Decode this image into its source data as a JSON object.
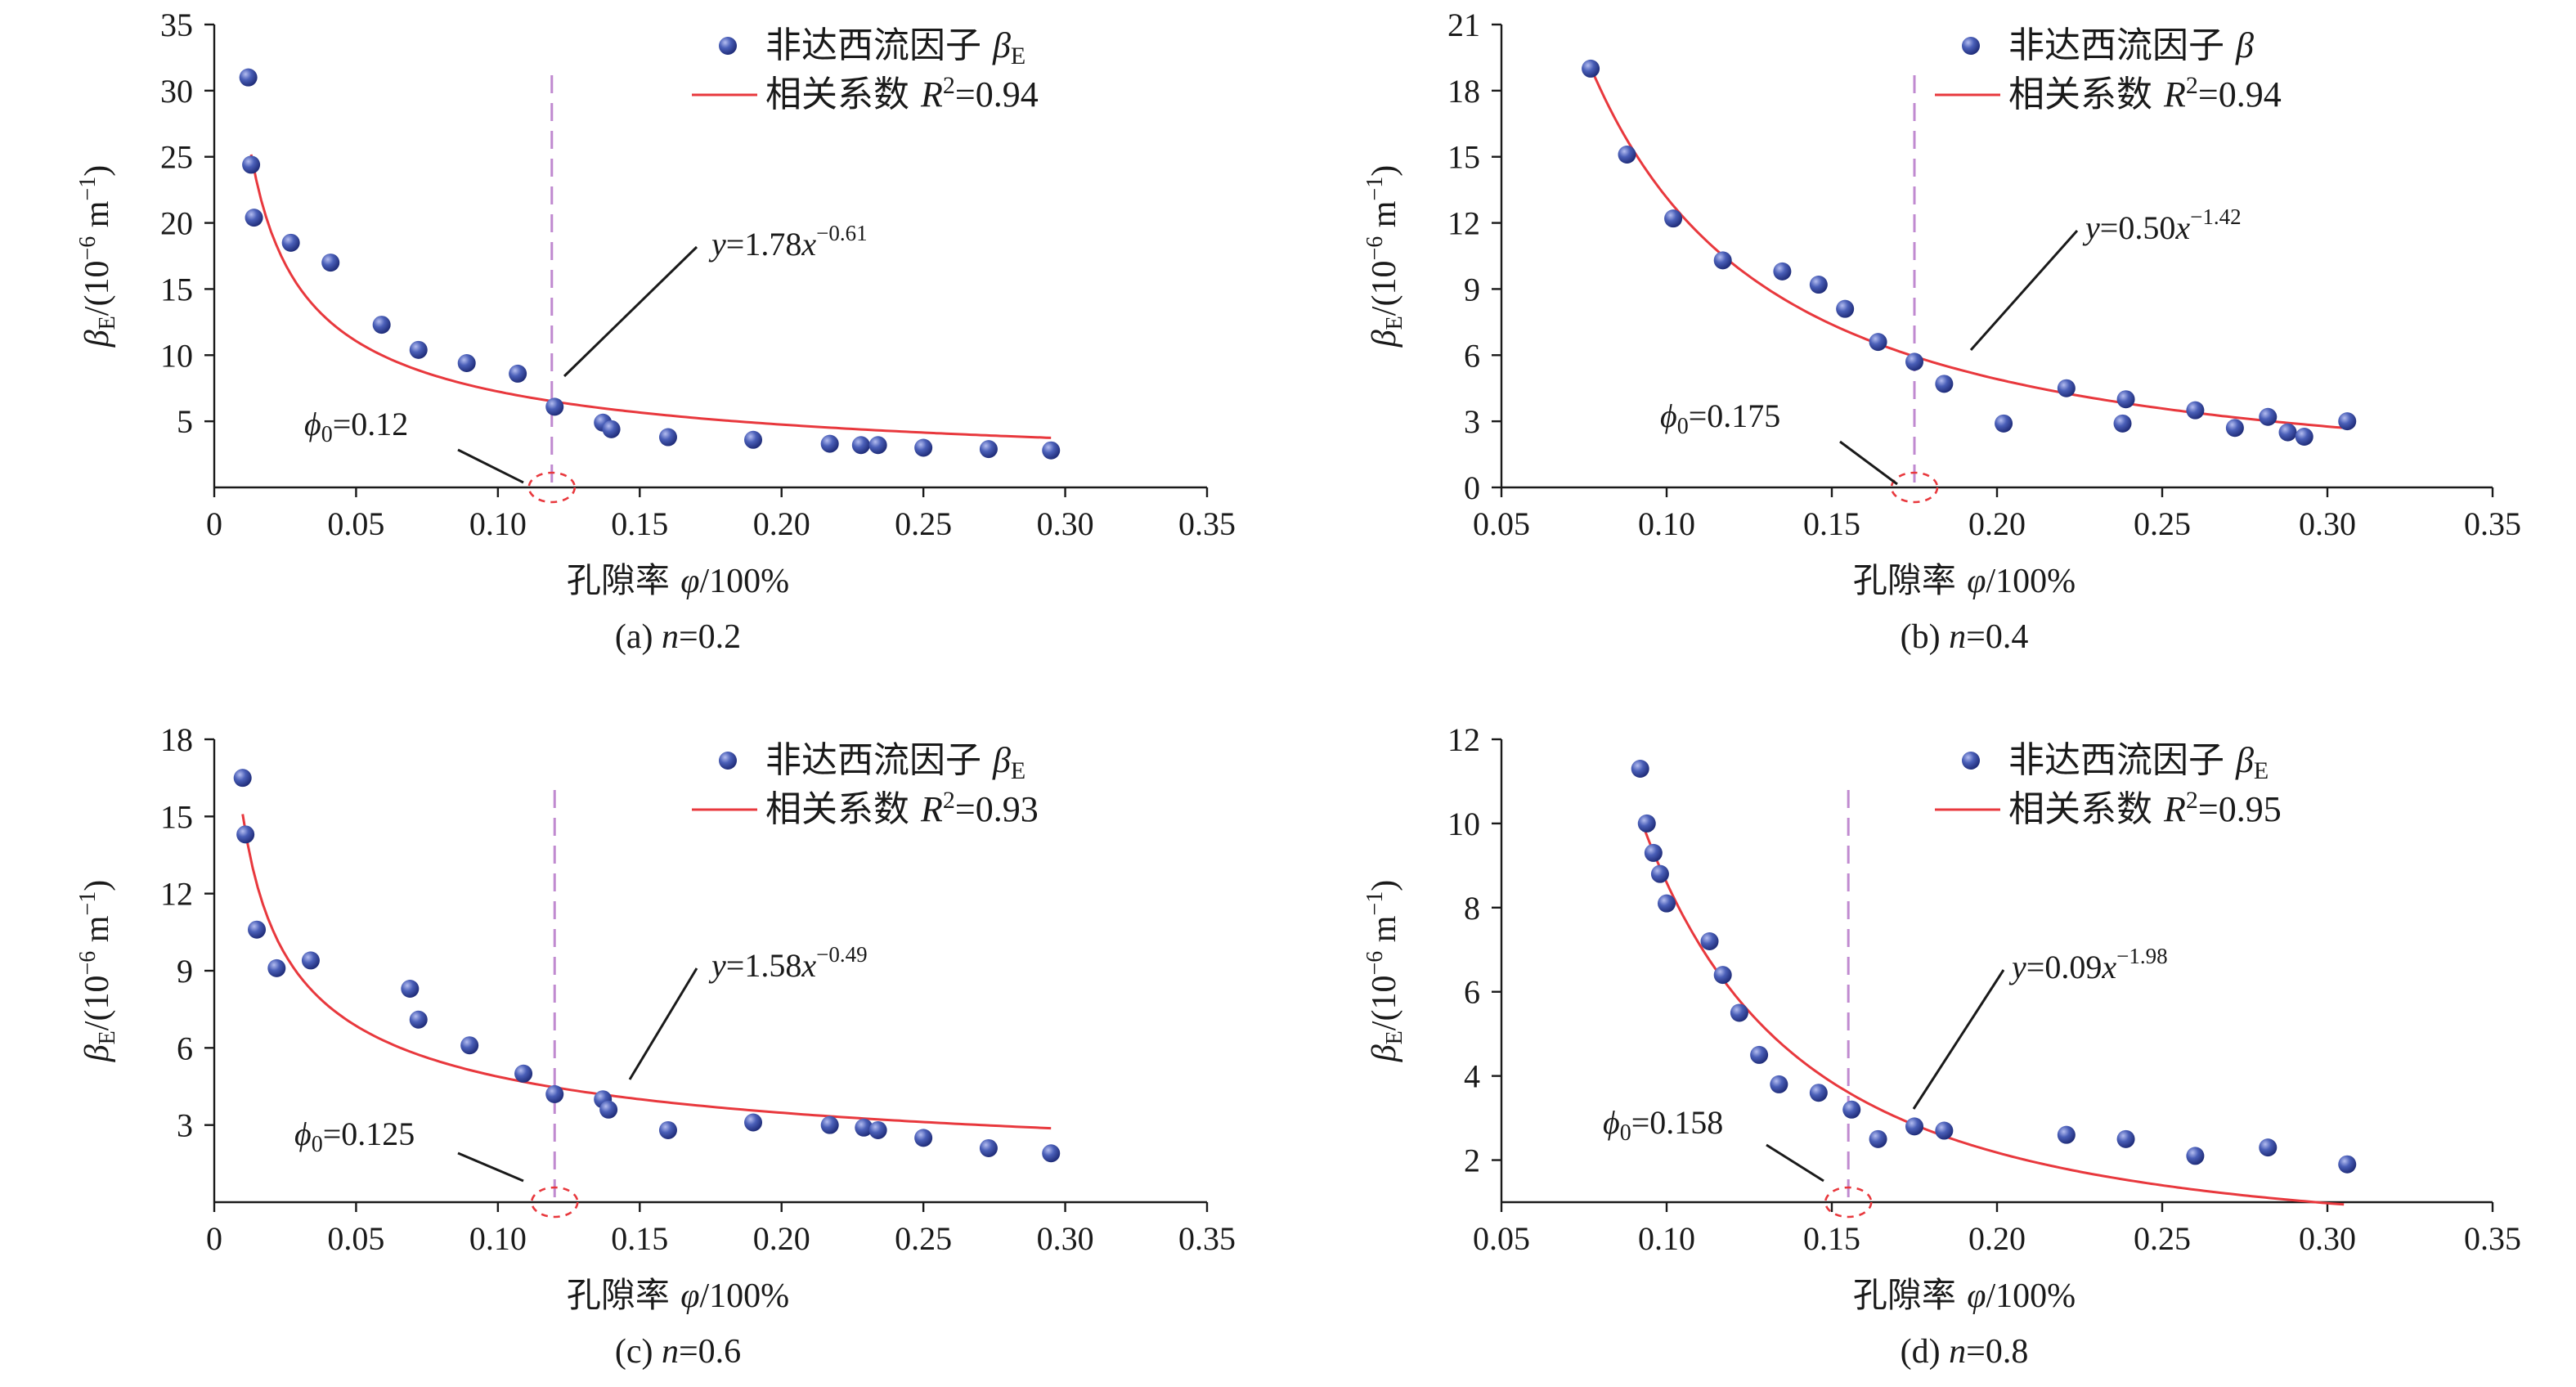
{
  "colors": {
    "points": "#3a4fa6",
    "point_highlight": "#9aa6df",
    "fit": "#e8383d",
    "threshold": "#c08ad0",
    "axis": "#1a1a1a"
  },
  "chart_data": [
    {
      "type": "scatter",
      "caption_prefix": "(a) ",
      "caption_var": "n",
      "caption_value": "=0.2",
      "xlabel_cn": "孔隙率 ",
      "xlabel_var": "φ",
      "xlabel_unit": "/100%",
      "ylabel": "β",
      "ylabel_sub": "E",
      "ylabel_unit": "/(10",
      "ylabel_exp": "−6",
      "ylabel_m": " m",
      "ylabel_exp2": "−1",
      "ylabel_close": ")",
      "xlim": [
        0,
        0.35
      ],
      "ylim": [
        0,
        35
      ],
      "xticks": [
        "0",
        "0.05",
        "0.10",
        "0.15",
        "0.20",
        "0.25",
        "0.30",
        "0.35"
      ],
      "xtick_values": [
        0,
        0.05,
        0.1,
        0.15,
        0.2,
        0.25,
        0.3,
        0.35
      ],
      "yticks": [
        "5",
        "10",
        "15",
        "20",
        "25",
        "30",
        "35"
      ],
      "ytick_values": [
        5,
        10,
        15,
        20,
        25,
        30,
        35
      ],
      "legend": {
        "points_label": "非达西流因子 ",
        "points_var": "β",
        "points_sub": "E",
        "fit_label": "相关系数 ",
        "fit_var": "R",
        "fit_exp": "2",
        "fit_value": "=0.94"
      },
      "equation": {
        "lhs": "y",
        "mid": "=1.78",
        "x": "x",
        "exp": "−0.61"
      },
      "phi0": {
        "sym": "ϕ",
        "sub": "0",
        "value": "=0.12",
        "x": 0.119
      },
      "fit": {
        "a": 1.78,
        "b": -0.61,
        "x_range": [
          0.013,
          0.295
        ]
      },
      "points": [
        [
          0.012,
          31.0
        ],
        [
          0.013,
          24.4
        ],
        [
          0.014,
          20.4
        ],
        [
          0.027,
          18.5
        ],
        [
          0.041,
          17.0
        ],
        [
          0.059,
          12.3
        ],
        [
          0.072,
          10.4
        ],
        [
          0.089,
          9.4
        ],
        [
          0.107,
          8.6
        ],
        [
          0.12,
          6.1
        ],
        [
          0.137,
          4.9
        ],
        [
          0.14,
          4.4
        ],
        [
          0.16,
          3.8
        ],
        [
          0.19,
          3.6
        ],
        [
          0.217,
          3.3
        ],
        [
          0.228,
          3.2
        ],
        [
          0.234,
          3.2
        ],
        [
          0.25,
          3.0
        ],
        [
          0.273,
          2.9
        ],
        [
          0.295,
          2.8
        ]
      ]
    },
    {
      "type": "scatter",
      "caption_prefix": "(b) ",
      "caption_var": "n",
      "caption_value": "=0.4",
      "xlabel_cn": "孔隙率 ",
      "xlabel_var": "φ",
      "xlabel_unit": "/100%",
      "ylabel": "β",
      "ylabel_sub": "E",
      "ylabel_unit": "/(10",
      "ylabel_exp": "−6",
      "ylabel_m": " m",
      "ylabel_exp2": "−1",
      "ylabel_close": ")",
      "xlim": [
        0.05,
        0.35
      ],
      "ylim": [
        0,
        21
      ],
      "xticks": [
        "0.05",
        "0.10",
        "0.15",
        "0.20",
        "0.25",
        "0.30",
        "0.35"
      ],
      "xtick_values": [
        0.05,
        0.1,
        0.15,
        0.2,
        0.25,
        0.3,
        0.35
      ],
      "yticks": [
        "0",
        "3",
        "6",
        "9",
        "12",
        "15",
        "18",
        "21"
      ],
      "ytick_values": [
        0,
        3,
        6,
        9,
        12,
        15,
        18,
        21
      ],
      "legend": {
        "points_label": "非达西流因子 ",
        "points_var": "β",
        "points_sub": "",
        "fit_label": "相关系数 ",
        "fit_var": "R",
        "fit_exp": "2",
        "fit_value": "=0.94"
      },
      "equation": {
        "lhs": "y",
        "mid": "=0.50",
        "x": "x",
        "exp": "−1.42"
      },
      "phi0": {
        "sym": "ϕ",
        "sub": "0",
        "value": "=0.175",
        "x": 0.175
      },
      "fit": {
        "a": 0.5,
        "b": -1.42,
        "x_range": [
          0.077,
          0.307
        ]
      },
      "points": [
        [
          0.077,
          19.0
        ],
        [
          0.088,
          15.1
        ],
        [
          0.102,
          12.2
        ],
        [
          0.117,
          10.3
        ],
        [
          0.135,
          9.8
        ],
        [
          0.146,
          9.2
        ],
        [
          0.154,
          8.1
        ],
        [
          0.164,
          6.6
        ],
        [
          0.175,
          5.7
        ],
        [
          0.184,
          4.7
        ],
        [
          0.202,
          2.9
        ],
        [
          0.221,
          4.5
        ],
        [
          0.238,
          2.9
        ],
        [
          0.239,
          4.0
        ],
        [
          0.26,
          3.5
        ],
        [
          0.272,
          2.7
        ],
        [
          0.282,
          3.2
        ],
        [
          0.288,
          2.5
        ],
        [
          0.293,
          2.3
        ],
        [
          0.306,
          3.0
        ]
      ]
    },
    {
      "type": "scatter",
      "caption_prefix": "(c) ",
      "caption_var": "n",
      "caption_value": "=0.6",
      "xlabel_cn": "孔隙率 ",
      "xlabel_var": "φ",
      "xlabel_unit": "/100%",
      "ylabel": "β",
      "ylabel_sub": "E",
      "ylabel_unit": "/(10",
      "ylabel_exp": "−6",
      "ylabel_m": " m",
      "ylabel_exp2": "−1",
      "ylabel_close": ")",
      "xlim": [
        0,
        0.35
      ],
      "ylim": [
        0,
        18
      ],
      "xticks": [
        "0",
        "0.05",
        "0.10",
        "0.15",
        "0.20",
        "0.25",
        "0.30",
        "0.35"
      ],
      "xtick_values": [
        0,
        0.05,
        0.1,
        0.15,
        0.2,
        0.25,
        0.3,
        0.35
      ],
      "yticks": [
        "3",
        "6",
        "9",
        "12",
        "15",
        "18"
      ],
      "ytick_values": [
        3,
        6,
        9,
        12,
        15,
        18
      ],
      "legend": {
        "points_label": "非达西流因子 ",
        "points_var": "β",
        "points_sub": "E",
        "fit_label": "相关系数 ",
        "fit_var": "R",
        "fit_exp": "2",
        "fit_value": "=0.93"
      },
      "equation": {
        "lhs": "y",
        "mid": "=1.58",
        "x": "x",
        "exp": "−0.49"
      },
      "phi0": {
        "sym": "ϕ",
        "sub": "0",
        "value": "=0.125",
        "x": 0.12
      },
      "fit": {
        "a": 1.58,
        "b": -0.49,
        "x_range": [
          0.01,
          0.295
        ]
      },
      "points": [
        [
          0.01,
          16.5
        ],
        [
          0.011,
          14.3
        ],
        [
          0.015,
          10.6
        ],
        [
          0.022,
          9.1
        ],
        [
          0.034,
          9.4
        ],
        [
          0.069,
          8.3
        ],
        [
          0.072,
          7.1
        ],
        [
          0.09,
          6.1
        ],
        [
          0.109,
          5.0
        ],
        [
          0.12,
          4.2
        ],
        [
          0.137,
          4.0
        ],
        [
          0.139,
          3.6
        ],
        [
          0.16,
          2.8
        ],
        [
          0.19,
          3.1
        ],
        [
          0.217,
          3.0
        ],
        [
          0.229,
          2.9
        ],
        [
          0.234,
          2.8
        ],
        [
          0.25,
          2.5
        ],
        [
          0.273,
          2.1
        ],
        [
          0.295,
          1.9
        ]
      ]
    },
    {
      "type": "scatter",
      "caption_prefix": "(d) ",
      "caption_var": "n",
      "caption_value": "=0.8",
      "xlabel_cn": "孔隙率 ",
      "xlabel_var": "φ",
      "xlabel_unit": "/100%",
      "ylabel": "β",
      "ylabel_sub": "E",
      "ylabel_unit": "/(10",
      "ylabel_exp": "−6",
      "ylabel_m": " m",
      "ylabel_exp2": "−1",
      "ylabel_close": ")",
      "xlim": [
        0.05,
        0.35
      ],
      "ylim": [
        1,
        12
      ],
      "xticks": [
        "0.05",
        "0.10",
        "0.15",
        "0.20",
        "0.25",
        "0.30",
        "0.35"
      ],
      "xtick_values": [
        0.05,
        0.1,
        0.15,
        0.2,
        0.25,
        0.3,
        0.35
      ],
      "yticks": [
        "2",
        "4",
        "6",
        "8",
        "10",
        "12"
      ],
      "ytick_values": [
        2,
        4,
        6,
        8,
        10,
        12
      ],
      "legend": {
        "points_label": "非达西流因子 ",
        "points_var": "β",
        "points_sub": "E",
        "fit_label": "相关系数 ",
        "fit_var": "R",
        "fit_exp": "2",
        "fit_value": "=0.95"
      },
      "equation": {
        "lhs": "y",
        "mid": "=0.09",
        "x": "x",
        "exp": "−1.98"
      },
      "phi0": {
        "sym": "ϕ",
        "sub": "0",
        "value": "=0.158",
        "x": 0.155
      },
      "fit": {
        "a": 0.09,
        "b": -1.98,
        "x_range": [
          0.093,
          0.305
        ]
      },
      "points": [
        [
          0.092,
          11.3
        ],
        [
          0.094,
          10.0
        ],
        [
          0.096,
          9.3
        ],
        [
          0.098,
          8.8
        ],
        [
          0.1,
          8.1
        ],
        [
          0.113,
          7.2
        ],
        [
          0.117,
          6.4
        ],
        [
          0.122,
          5.5
        ],
        [
          0.128,
          4.5
        ],
        [
          0.134,
          3.8
        ],
        [
          0.146,
          3.6
        ],
        [
          0.156,
          3.2
        ],
        [
          0.164,
          2.5
        ],
        [
          0.175,
          2.8
        ],
        [
          0.184,
          2.7
        ],
        [
          0.221,
          2.6
        ],
        [
          0.239,
          2.5
        ],
        [
          0.26,
          2.1
        ],
        [
          0.282,
          2.3
        ],
        [
          0.306,
          1.9
        ]
      ]
    }
  ]
}
